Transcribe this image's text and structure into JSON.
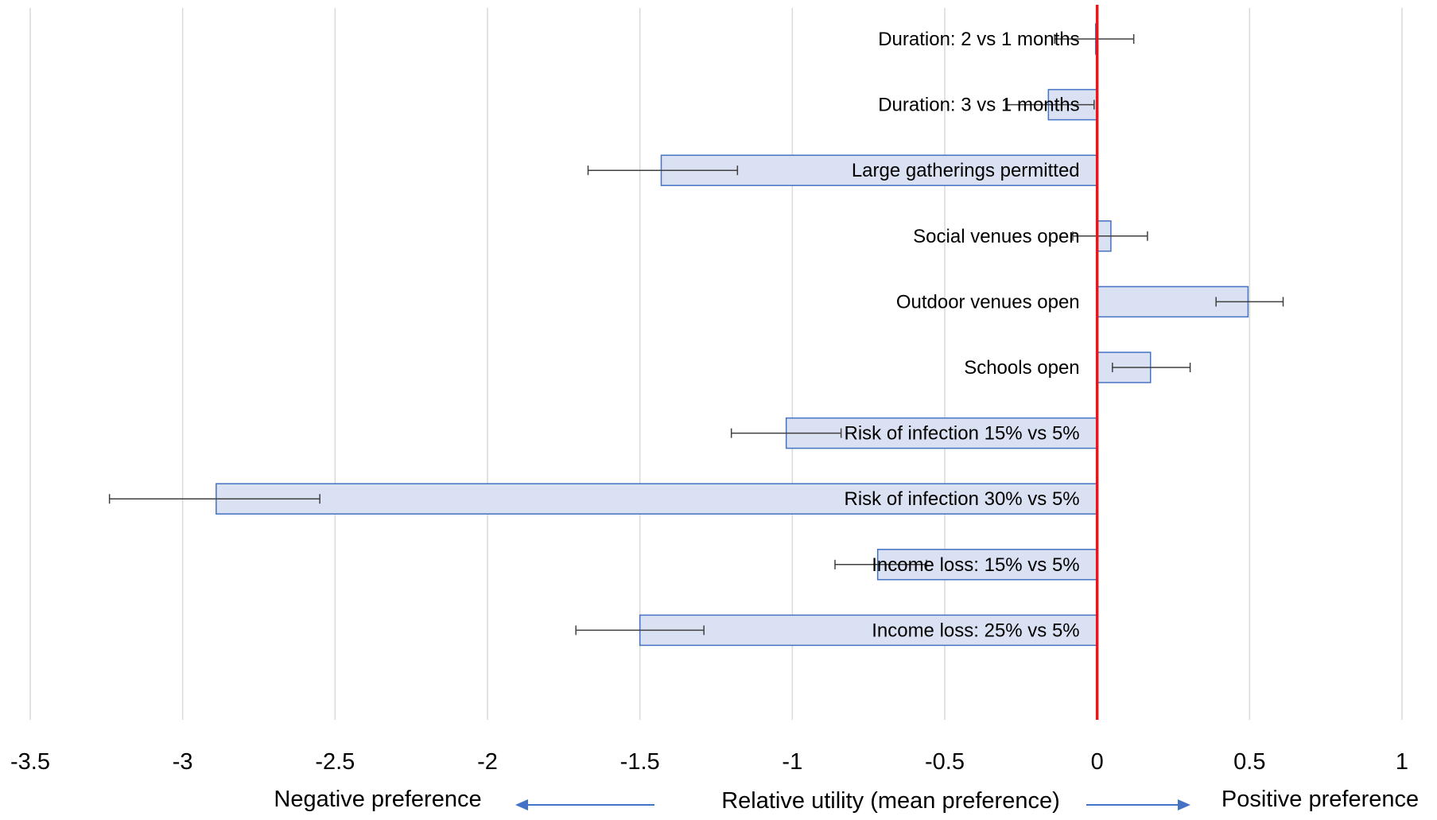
{
  "chart_data": {
    "type": "bar",
    "orientation": "horizontal",
    "categories": [
      "Duration: 2 vs 1 months",
      "Duration: 3 vs 1 months",
      "Large gatherings permitted",
      "Social venues open",
      "Outdoor venues open",
      "Schools open",
      "Risk of infection 15% vs 5%",
      "Risk of infection 30% vs 5%",
      "Income loss: 15% vs 5%",
      "Income loss: 25% vs 5%"
    ],
    "values": [
      -0.005,
      -0.16,
      -1.43,
      0.045,
      0.495,
      0.175,
      -1.02,
      -2.89,
      -0.72,
      -1.5
    ],
    "error_low": [
      -0.14,
      -0.3,
      -1.67,
      -0.08,
      0.39,
      0.05,
      -1.2,
      -3.24,
      -0.86,
      -1.71
    ],
    "error_high": [
      0.12,
      -0.01,
      -1.18,
      0.165,
      0.61,
      0.305,
      -0.84,
      -2.55,
      -0.56,
      -1.29
    ],
    "xlim": [
      -3.5,
      1
    ],
    "xticks": [
      -3.5,
      -3,
      -2.5,
      -2,
      -1.5,
      -1,
      -0.5,
      0,
      0.5,
      1
    ],
    "xtick_labels": [
      "-3.5",
      "-3",
      "-2.5",
      "-2",
      "-1.5",
      "-1",
      "-0.5",
      "0",
      "0.5",
      "1"
    ],
    "xlabel": "Relative utility (mean preference)",
    "negative_label": "Negative preference",
    "positive_label": "Positive preference",
    "reference_line_value": 0,
    "grid": "vertical",
    "colors": {
      "bar_fill": "#d9e1f2",
      "bar_edge": "#4472c4",
      "reference_line": "#e8161b",
      "arrow": "#4472c4",
      "error_bar": "#404040",
      "grid": "#d9d9d9"
    }
  }
}
